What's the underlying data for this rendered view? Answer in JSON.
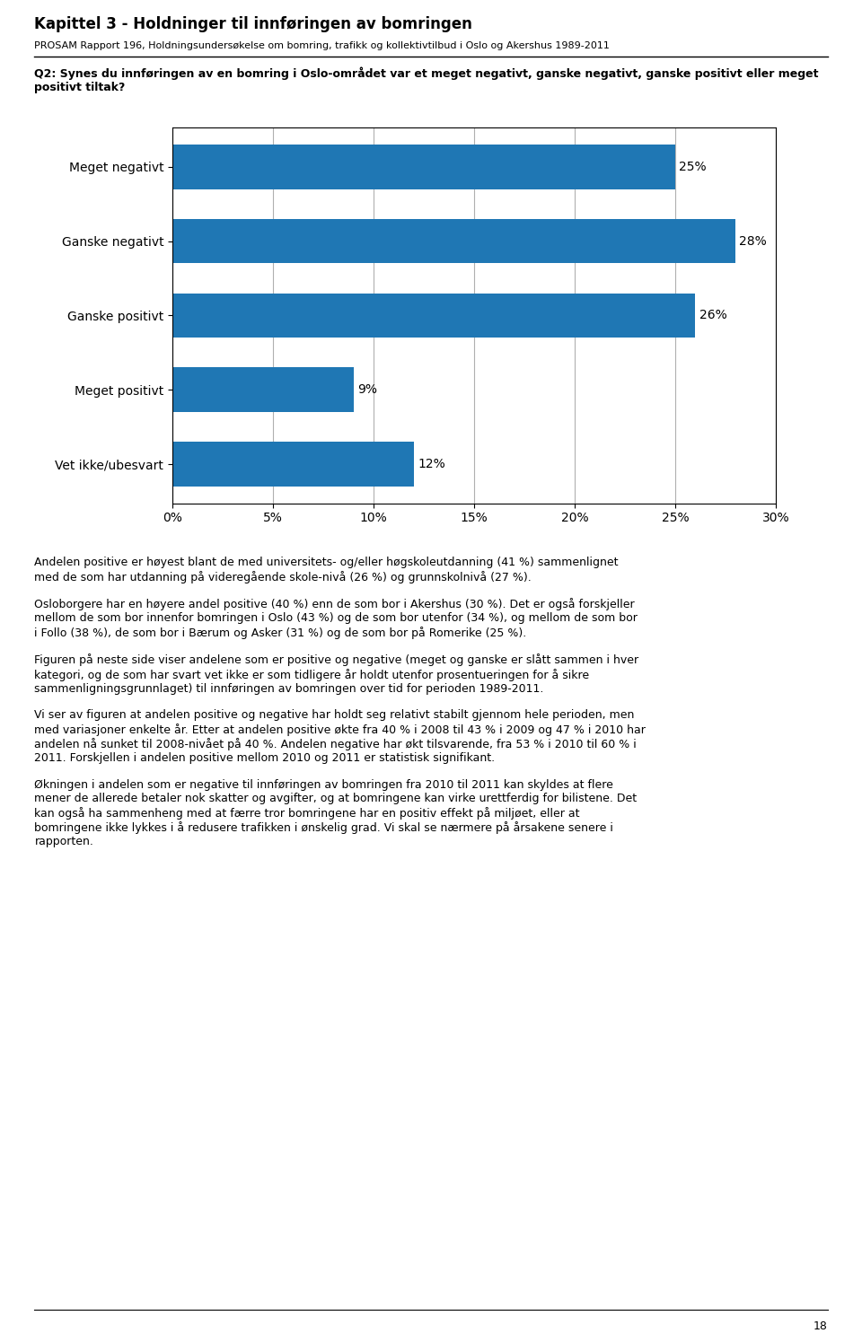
{
  "chart_data": {
    "type": "bar",
    "orientation": "horizontal",
    "title": "Kapittel 3 - Holdninger til innføringen av bomringen",
    "subtitle": "PROSAM Rapport 196, Holdningsundersøkelse om bomring, trafikk og kollektivtilbud i Oslo og Akershus 1989-2011",
    "annotations": [
      "Q2: Synes du innføringen av en bomring i Oslo-området var et meget negativt, ganske negativt, ganske positivt eller meget positivt tiltak?",
      "Andelen positive er høyest blant de med universitets- og/eller høgskoleutdanning (41 %) sammenlignet\nmed de som har utdanning på videregående skole-nivå (26 %) og grunnskolnivå (27 %).",
      "Osloborgere har en høyere andel positive (40 %) enn de som bor i Akershus (30 %). Det er også forskjeller\nmellom de som bor innenfor bomringen i Oslo (43 %) og de som bor utenfor (34 %), og mellom de som bor\ni Follo (38 %), de som bor i Bærum og Asker (31 %) og de som bor på Romerike (25 %).",
      "Figuren på neste side viser andelene som er positive og negative (meget og ganske er slått sammen i hver\nkategori, og de som har svart vet ikke er som tidligere år holdt utenfor prosentueringen for å sikre\nsammenligningsgrunnlaget) til innføringen av bomringen over tid for perioden 1989-2011.",
      "Vi ser av figuren at andelen positive og negative har holdt seg relativt stabilt gjennom hele perioden, men\nmed variasjoner enkelte år. Etter at andelen positive økte fra 40 % i 2008 til 43 % i 2009 og 47 % i 2010 har\nandelen nå sunket til 2008-nivået på 40 %. Andelen negative har økt tilsvarende, fra 53 % i 2010 til 60 % i\n2011. Forskjellen i andelen positive mellom 2010 og 2011 er statistisk signifikant.",
      "Økningen i andelen som er negative til innføringen av bomringen fra 2010 til 2011 kan skyldes at flere\nmener de allerede betaler nok skatter og avgifter, og at bomringene kan virke urettferdig for bilistene. Det\nkan også ha sammenheng med at færre tror bomringene har en positiv effekt på miljøet, eller at\nbomringene ikke lykkes i å redusere trafikken i ønskelig grad. Vi skal se nærmere på årsakene senere i\nrapporten.",
      "18"
    ],
    "categories": [
      "Meget negativt",
      "Ganske negativt",
      "Ganske positivt",
      "Meget positivt",
      "Vet ikke/ubesvart"
    ],
    "values": [
      25,
      28,
      26,
      9,
      12
    ],
    "data_labels": true,
    "value_labels": [
      "25%",
      "28%",
      "26%",
      "9%",
      "12%"
    ],
    "xlim": [
      0,
      30
    ],
    "xticks": [
      {
        "value": 0,
        "label": "0%"
      },
      {
        "value": 5,
        "label": "5%"
      },
      {
        "value": 10,
        "label": "10%"
      },
      {
        "value": 15,
        "label": "15%"
      },
      {
        "value": 20,
        "label": "20%"
      },
      {
        "value": 25,
        "label": "25%"
      },
      {
        "value": 30,
        "label": "30%"
      }
    ],
    "grid": true
  }
}
